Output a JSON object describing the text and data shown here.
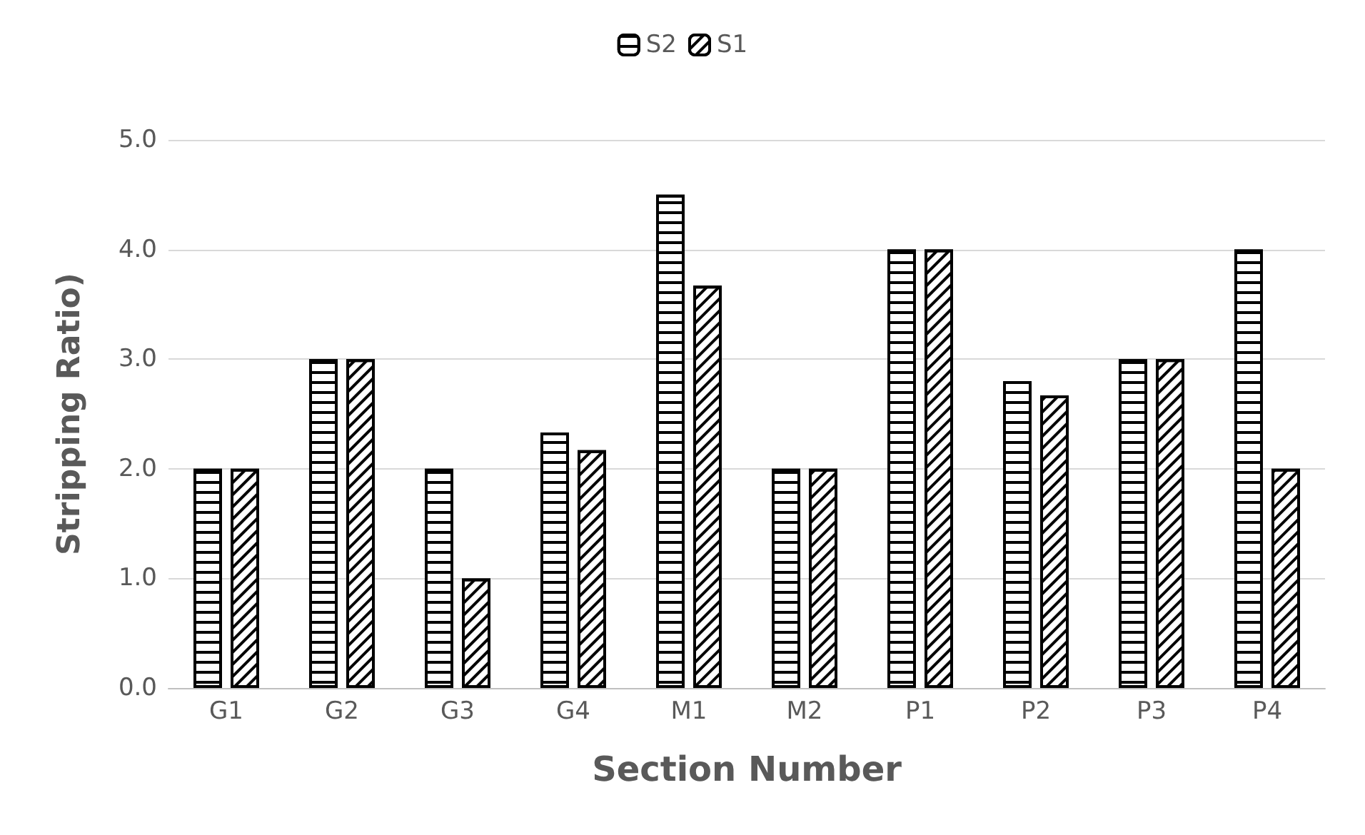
{
  "chart_data": {
    "type": "bar",
    "xlabel": "Section Number",
    "ylabel": "Stripping Ratio)",
    "categories": [
      "G1",
      "G2",
      "G3",
      "G4",
      "M1",
      "M2",
      "P1",
      "P2",
      "P3",
      "P4"
    ],
    "series": [
      {
        "name": "S2",
        "color": "#000000",
        "values": [
          2,
          3,
          2,
          2.33,
          4.5,
          2,
          4,
          2.8,
          3,
          4
        ]
      },
      {
        "name": "S1",
        "color": "#000000",
        "values": [
          2,
          3,
          1,
          2.17,
          3.67,
          2,
          4,
          2.67,
          3,
          2
        ]
      }
    ],
    "ylim": [
      0,
      5
    ],
    "yticks": [
      {
        "value": 0,
        "label": "0.0"
      },
      {
        "value": 1,
        "label": "1.0"
      },
      {
        "value": 2,
        "label": "2.0"
      },
      {
        "value": 3,
        "label": "3.0"
      },
      {
        "value": 4,
        "label": "4.0"
      },
      {
        "value": 5,
        "label": "5.0"
      }
    ],
    "grid": "y",
    "legend": "top"
  }
}
